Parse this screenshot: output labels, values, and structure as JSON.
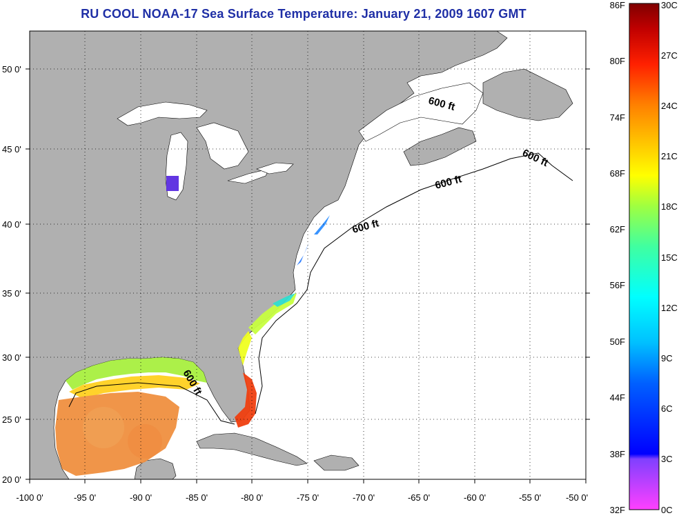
{
  "title": "RU COOL  NOAA-17  Sea Surface Temperature:  January 21, 2009 1607 GMT",
  "axes": {
    "lon_labels": [
      "-100 0'",
      "-95 0'",
      "-90 0'",
      "-85 0'",
      "-80 0'",
      "-75 0'",
      "-70 0'",
      "-65 0'",
      "-60 0'",
      "-55 0'",
      "-50 0'"
    ],
    "lat_labels": [
      "50 0'",
      "45 0'",
      "40 0'",
      "35 0'",
      "30 0'",
      "25 0'",
      "20 0'"
    ]
  },
  "contour_labels": [
    "600 ft",
    "600 ft",
    "600 ft",
    "600 ft",
    "600 ft"
  ],
  "colorbar": {
    "fahrenheit": [
      "86F",
      "80F",
      "74F",
      "68F",
      "62F",
      "56F",
      "50F",
      "44F",
      "38F",
      "32F"
    ],
    "celsius": [
      "30C",
      "27C",
      "24C",
      "21C",
      "18C",
      "15C",
      "12C",
      "9C",
      "6C",
      "3C",
      "0C"
    ],
    "colors": [
      "#ff40ff",
      "#8040ff",
      "#0000ff",
      "#0060ff",
      "#00c0ff",
      "#00ffff",
      "#40ffa0",
      "#a0ff40",
      "#ffff00",
      "#ffc000",
      "#ff8000",
      "#ff2000",
      "#c00000",
      "#800000"
    ]
  },
  "colors": {
    "land": "#b0b0b0",
    "ocean": "#ffffff",
    "title": "#1f2fa6"
  }
}
